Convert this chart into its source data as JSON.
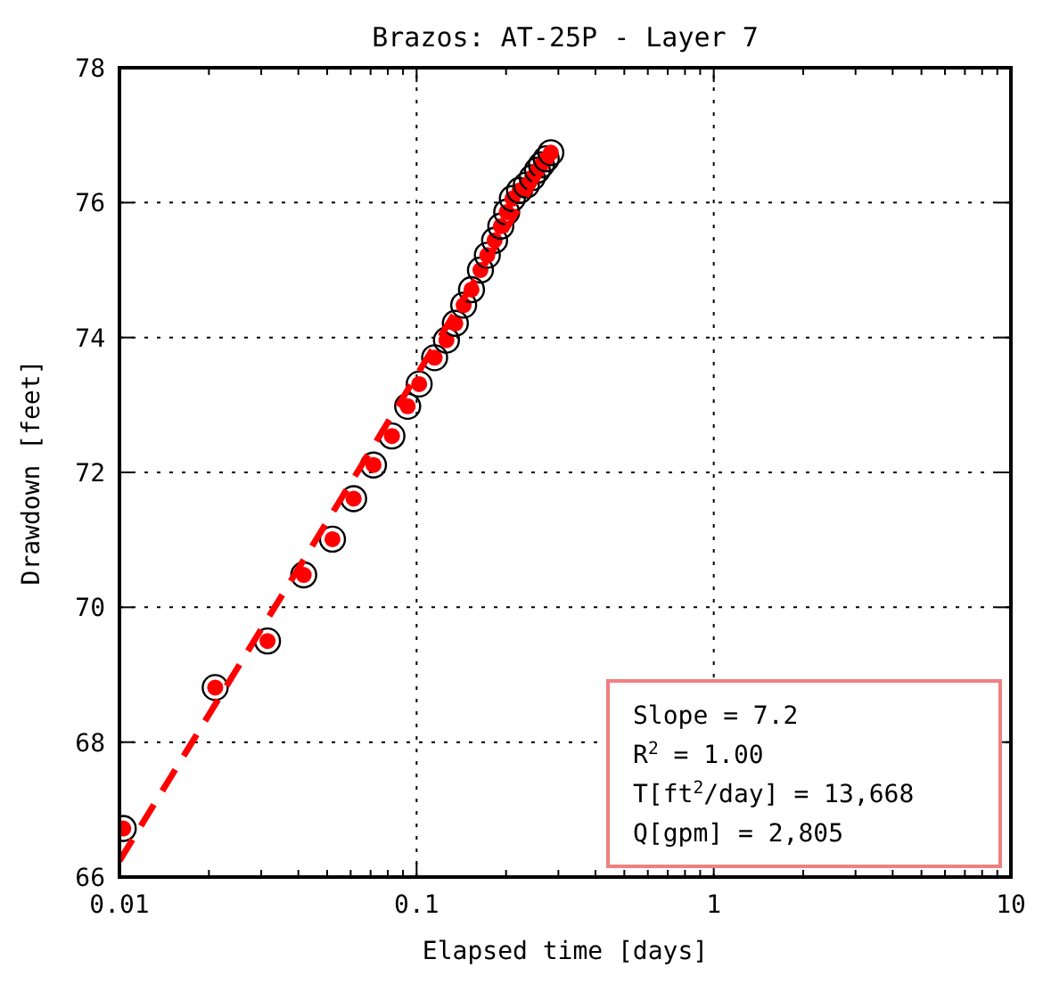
{
  "chart_data": {
    "type": "scatter",
    "title": "Brazos: AT-25P - Layer 7",
    "xlabel": "Elapsed time [days]",
    "ylabel": "Drawdown [feet]",
    "log": "x",
    "grid": true,
    "marker": "circle",
    "xlim": [
      0.01,
      10
    ],
    "ylim": [
      66,
      78
    ],
    "xticks": [
      0.01,
      {
        "value": 0.02,
        "label": null
      },
      {
        "value": 0.03,
        "label": null
      },
      {
        "value": 0.04,
        "label": null
      },
      {
        "value": 0.05,
        "label": null
      },
      {
        "value": 0.06,
        "label": null
      },
      {
        "value": 0.07,
        "label": null
      },
      {
        "value": 0.08,
        "label": null
      },
      {
        "value": 0.09,
        "label": null
      },
      0.1,
      {
        "value": 0.2,
        "label": null
      },
      {
        "value": 0.3,
        "label": null
      },
      {
        "value": 0.4,
        "label": null
      },
      {
        "value": 0.5,
        "label": null
      },
      {
        "value": 0.6,
        "label": null
      },
      {
        "value": 0.7,
        "label": null
      },
      {
        "value": 0.8,
        "label": null
      },
      {
        "value": 0.9,
        "label": null
      },
      1,
      {
        "value": 2,
        "label": null
      },
      {
        "value": 3,
        "label": null
      },
      {
        "value": 4,
        "label": null
      },
      {
        "value": 5,
        "label": null
      },
      {
        "value": 6,
        "label": null
      },
      {
        "value": 7,
        "label": null
      },
      {
        "value": 8,
        "label": null
      },
      {
        "value": 9,
        "label": null
      },
      10
    ],
    "yticks": [
      66,
      68,
      70,
      72,
      74,
      76,
      78
    ],
    "x": [
      0.0103,
      0.021,
      0.0315,
      0.0417,
      0.0521,
      0.0614,
      0.0716,
      0.0826,
      0.0933,
      0.102,
      0.115,
      0.126,
      0.135,
      0.144,
      0.153,
      0.164,
      0.173,
      0.183,
      0.192,
      0.201,
      0.21,
      0.222,
      0.234,
      0.245,
      0.255,
      0.263,
      0.273,
      0.283
    ],
    "series": [
      {
        "color": "#ff0000",
        "values": [
          66.72,
          68.81,
          69.5,
          70.48,
          71.01,
          71.61,
          72.11,
          72.54,
          72.98,
          73.31,
          73.7,
          73.96,
          74.21,
          74.48,
          74.71,
          75.0,
          75.22,
          75.44,
          75.65,
          75.86,
          76.06,
          76.18,
          76.26,
          76.37,
          76.48,
          76.56,
          76.65,
          76.74
        ]
      },
      {
        "type": "line",
        "color": "#ff0000",
        "line_style": "dashed",
        "marker": "none",
        "x": [
          0.01,
          0.283
        ],
        "values": [
          66.24,
          76.69
        ]
      }
    ],
    "annotations": [
      "Slope = 7.2",
      "R$^{2}$ = 1.00",
      "T[ft$^{2}$/day] = 13,668",
      "Q[gpm] = 2,805"
    ]
  }
}
